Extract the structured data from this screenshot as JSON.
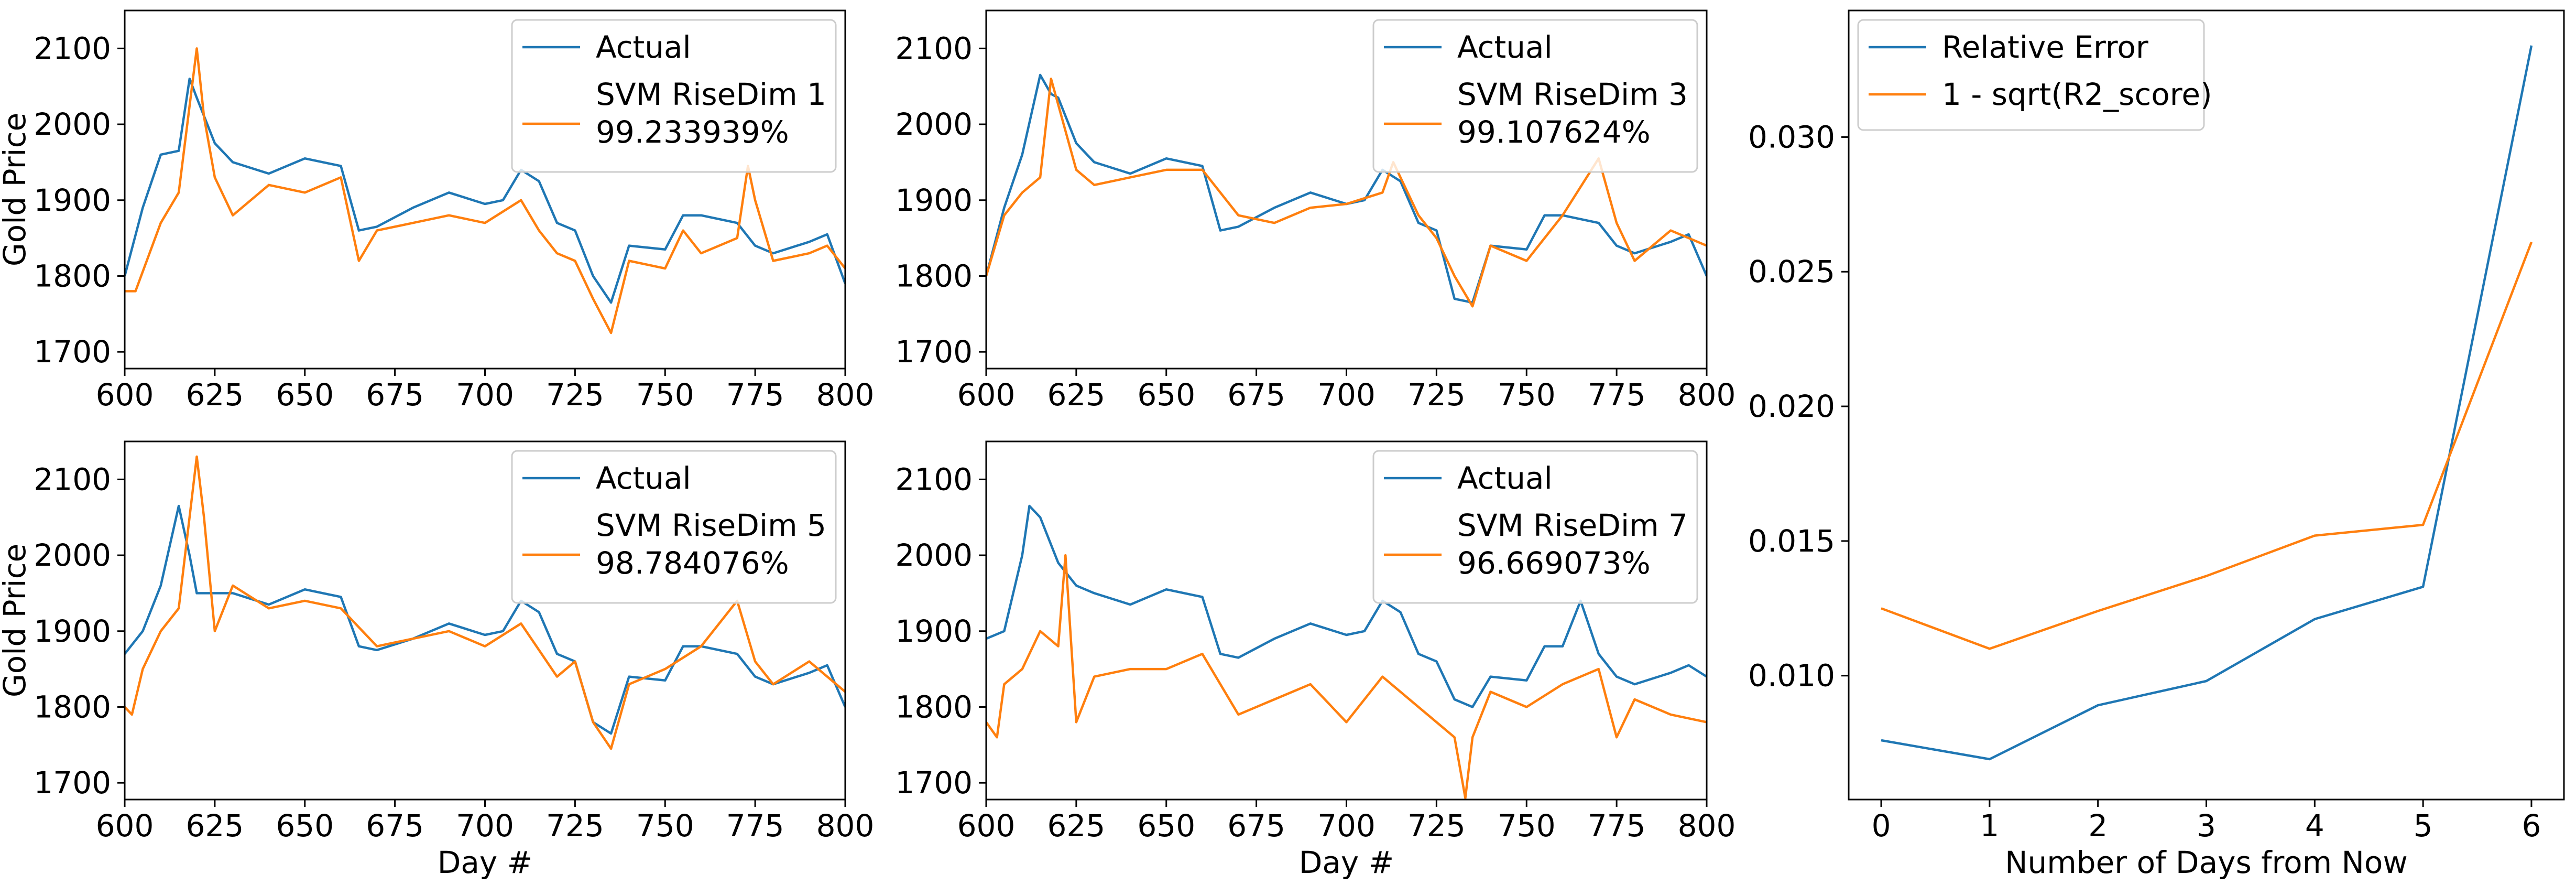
{
  "colors": {
    "actual": "#1f77b4",
    "predicted": "#ff7f0e",
    "axes": "#000000",
    "legend_border": "#cccccc"
  },
  "chart_data": [
    {
      "type": "line",
      "id": "svm-risedim-1",
      "xlabel": "",
      "ylabel": "Gold Price",
      "xlim": [
        600,
        800
      ],
      "ylim": [
        1678,
        2150
      ],
      "xticks": [
        "600",
        "625",
        "650",
        "675",
        "700",
        "725",
        "750",
        "775",
        "800"
      ],
      "yticks": [
        "1700",
        "1800",
        "1900",
        "2000",
        "2100"
      ],
      "legend_position": "upper right",
      "series": [
        {
          "name": "Actual",
          "color": "#1f77b4",
          "x": [
            600,
            605,
            610,
            615,
            618,
            620,
            625,
            630,
            640,
            650,
            660,
            665,
            670,
            680,
            690,
            700,
            705,
            710,
            715,
            720,
            725,
            730,
            735,
            740,
            750,
            755,
            760,
            770,
            775,
            780,
            790,
            795,
            800
          ],
          "y": [
            1800,
            1890,
            1960,
            1965,
            2060,
            2035,
            1975,
            1950,
            1935,
            1955,
            1945,
            1860,
            1865,
            1890,
            1910,
            1895,
            1900,
            1940,
            1925,
            1870,
            1860,
            1800,
            1765,
            1840,
            1835,
            1880,
            1880,
            1870,
            1840,
            1830,
            1845,
            1855,
            1790
          ]
        },
        {
          "name": "SVM RiseDim 1\n99.233939%",
          "color": "#ff7f0e",
          "x": [
            600,
            603,
            610,
            615,
            620,
            622,
            625,
            630,
            640,
            650,
            660,
            665,
            670,
            680,
            690,
            700,
            710,
            715,
            720,
            725,
            730,
            735,
            740,
            750,
            755,
            760,
            770,
            773,
            775,
            780,
            790,
            795,
            800
          ],
          "y": [
            1780,
            1780,
            1870,
            1910,
            2100,
            2010,
            1930,
            1880,
            1920,
            1910,
            1930,
            1820,
            1860,
            1870,
            1880,
            1870,
            1900,
            1860,
            1830,
            1820,
            1770,
            1725,
            1820,
            1810,
            1860,
            1830,
            1850,
            1945,
            1900,
            1820,
            1830,
            1840,
            1810
          ]
        }
      ]
    },
    {
      "type": "line",
      "id": "svm-risedim-3",
      "xlabel": "",
      "ylabel": "",
      "xlim": [
        600,
        800
      ],
      "ylim": [
        1678,
        2150
      ],
      "xticks": [
        "600",
        "625",
        "650",
        "675",
        "700",
        "725",
        "750",
        "775",
        "800"
      ],
      "yticks": [
        "1700",
        "1800",
        "1900",
        "2000",
        "2100"
      ],
      "legend_position": "upper right",
      "series": [
        {
          "name": "Actual",
          "color": "#1f77b4",
          "x": [
            600,
            605,
            610,
            615,
            618,
            620,
            625,
            630,
            640,
            650,
            660,
            665,
            670,
            680,
            690,
            700,
            705,
            710,
            715,
            720,
            725,
            730,
            735,
            740,
            750,
            755,
            760,
            770,
            775,
            780,
            790,
            795,
            800
          ],
          "y": [
            1800,
            1890,
            1960,
            2065,
            2040,
            2035,
            1975,
            1950,
            1935,
            1955,
            1945,
            1860,
            1865,
            1890,
            1910,
            1895,
            1900,
            1940,
            1925,
            1870,
            1860,
            1770,
            1765,
            1840,
            1835,
            1880,
            1880,
            1870,
            1840,
            1830,
            1845,
            1855,
            1800
          ]
        },
        {
          "name": "SVM RiseDim 3\n99.107624%",
          "color": "#ff7f0e",
          "x": [
            600,
            605,
            610,
            615,
            618,
            625,
            630,
            640,
            650,
            660,
            670,
            680,
            690,
            700,
            710,
            713,
            720,
            725,
            730,
            735,
            740,
            750,
            760,
            770,
            775,
            780,
            790,
            800
          ],
          "y": [
            1800,
            1880,
            1910,
            1930,
            2060,
            1940,
            1920,
            1930,
            1940,
            1940,
            1880,
            1870,
            1890,
            1895,
            1910,
            1950,
            1880,
            1850,
            1800,
            1760,
            1840,
            1820,
            1880,
            1955,
            1870,
            1820,
            1860,
            1840
          ]
        }
      ]
    },
    {
      "type": "line",
      "id": "svm-risedim-5",
      "xlabel": "Day #",
      "ylabel": "Gold Price",
      "xlim": [
        600,
        800
      ],
      "ylim": [
        1678,
        2150
      ],
      "xticks": [
        "600",
        "625",
        "650",
        "675",
        "700",
        "725",
        "750",
        "775",
        "800"
      ],
      "yticks": [
        "1700",
        "1800",
        "1900",
        "2000",
        "2100"
      ],
      "legend_position": "upper right",
      "series": [
        {
          "name": "Actual",
          "color": "#1f77b4",
          "x": [
            600,
            605,
            610,
            615,
            618,
            620,
            625,
            630,
            640,
            650,
            660,
            665,
            670,
            680,
            690,
            700,
            705,
            710,
            715,
            720,
            725,
            730,
            735,
            740,
            750,
            755,
            760,
            770,
            775,
            780,
            790,
            795,
            800
          ],
          "y": [
            1870,
            1900,
            1960,
            2065,
            2000,
            1950,
            1950,
            1950,
            1935,
            1955,
            1945,
            1880,
            1875,
            1890,
            1910,
            1895,
            1900,
            1940,
            1925,
            1870,
            1860,
            1780,
            1765,
            1840,
            1835,
            1880,
            1880,
            1870,
            1840,
            1830,
            1845,
            1855,
            1800
          ]
        },
        {
          "name": "SVM RiseDim 5\n98.784076%",
          "color": "#ff7f0e",
          "x": [
            600,
            602,
            605,
            610,
            615,
            620,
            622,
            625,
            630,
            640,
            650,
            660,
            670,
            680,
            690,
            700,
            710,
            720,
            725,
            730,
            735,
            740,
            750,
            760,
            770,
            775,
            780,
            790,
            800
          ],
          "y": [
            1800,
            1790,
            1850,
            1900,
            1930,
            2130,
            2050,
            1900,
            1960,
            1930,
            1940,
            1930,
            1880,
            1890,
            1900,
            1880,
            1910,
            1840,
            1860,
            1780,
            1745,
            1830,
            1850,
            1880,
            1940,
            1860,
            1830,
            1860,
            1820
          ]
        }
      ]
    },
    {
      "type": "line",
      "id": "svm-risedim-7",
      "xlabel": "Day #",
      "ylabel": "",
      "xlim": [
        600,
        800
      ],
      "ylim": [
        1678,
        2150
      ],
      "xticks": [
        "600",
        "625",
        "650",
        "675",
        "700",
        "725",
        "750",
        "775",
        "800"
      ],
      "yticks": [
        "1700",
        "1800",
        "1900",
        "2000",
        "2100"
      ],
      "legend_position": "upper right",
      "series": [
        {
          "name": "Actual",
          "color": "#1f77b4",
          "x": [
            600,
            605,
            610,
            612,
            615,
            620,
            625,
            630,
            640,
            650,
            660,
            665,
            670,
            680,
            690,
            700,
            705,
            710,
            715,
            720,
            725,
            730,
            735,
            740,
            750,
            755,
            760,
            765,
            770,
            775,
            780,
            790,
            795,
            800
          ],
          "y": [
            1890,
            1900,
            2000,
            2065,
            2050,
            1990,
            1960,
            1950,
            1935,
            1955,
            1945,
            1870,
            1865,
            1890,
            1910,
            1895,
            1900,
            1940,
            1925,
            1870,
            1860,
            1810,
            1800,
            1840,
            1835,
            1880,
            1880,
            1940,
            1870,
            1840,
            1830,
            1845,
            1855,
            1840
          ]
        },
        {
          "name": "SVM RiseDim 7\n96.669073%",
          "color": "#ff7f0e",
          "x": [
            600,
            603,
            605,
            610,
            615,
            620,
            622,
            625,
            630,
            640,
            650,
            660,
            670,
            680,
            690,
            700,
            710,
            720,
            725,
            730,
            733,
            735,
            740,
            750,
            760,
            770,
            775,
            780,
            790,
            800
          ],
          "y": [
            1780,
            1760,
            1830,
            1850,
            1900,
            1880,
            2000,
            1780,
            1840,
            1850,
            1850,
            1870,
            1790,
            1810,
            1830,
            1780,
            1840,
            1800,
            1780,
            1760,
            1680,
            1760,
            1820,
            1800,
            1830,
            1850,
            1760,
            1810,
            1790,
            1780
          ]
        }
      ]
    },
    {
      "type": "line",
      "id": "error-vs-days",
      "xlabel": "Number of Days from Now",
      "ylabel": "",
      "xlim": [
        -0.3,
        6.3
      ],
      "ylim": [
        0.0054,
        0.0347
      ],
      "xticks": [
        "0",
        "1",
        "2",
        "3",
        "4",
        "5",
        "6"
      ],
      "yticks": [
        "0.010",
        "0.015",
        "0.020",
        "0.025",
        "0.030"
      ],
      "legend_position": "upper left",
      "series": [
        {
          "name": "Relative Error",
          "color": "#1f77b4",
          "x": [
            0,
            1,
            2,
            3,
            4,
            5,
            6
          ],
          "y": [
            0.0076,
            0.0069,
            0.0089,
            0.0098,
            0.0121,
            0.0133,
            0.0334
          ]
        },
        {
          "name": "1 - sqrt(R2_score)",
          "color": "#ff7f0e",
          "x": [
            0,
            1,
            2,
            3,
            4,
            5,
            6
          ],
          "y": [
            0.0125,
            0.011,
            0.0124,
            0.0137,
            0.0152,
            0.0156,
            0.0261
          ]
        }
      ]
    }
  ]
}
